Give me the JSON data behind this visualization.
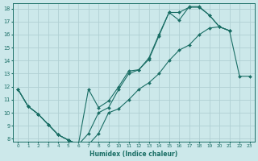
{
  "xlabel": "Humidex (Indice chaleur)",
  "xlim": [
    -0.5,
    23.5
  ],
  "ylim": [
    7.8,
    18.4
  ],
  "yticks": [
    8,
    9,
    10,
    11,
    12,
    13,
    14,
    15,
    16,
    17,
    18
  ],
  "xticks": [
    0,
    1,
    2,
    3,
    4,
    5,
    6,
    7,
    8,
    9,
    10,
    11,
    12,
    13,
    14,
    15,
    16,
    17,
    18,
    19,
    20,
    21,
    22,
    23
  ],
  "bg_color": "#cce8ea",
  "grid_color": "#b0d0d3",
  "line_color": "#1a6e65",
  "lines": [
    {
      "x": [
        0,
        1,
        2,
        3,
        4,
        5,
        6,
        7,
        8,
        9,
        10,
        11,
        12,
        13,
        14,
        15,
        16,
        17,
        18,
        19,
        20,
        21
      ],
      "y": [
        11.8,
        10.5,
        9.9,
        9.1,
        8.3,
        7.9,
        7.55,
        11.8,
        10.4,
        10.9,
        12.0,
        13.2,
        13.3,
        14.2,
        16.0,
        17.7,
        17.1,
        18.15,
        18.15,
        17.5,
        16.6,
        16.3
      ]
    },
    {
      "x": [
        0,
        1,
        2,
        3,
        4,
        5,
        6,
        7,
        8,
        9,
        10,
        11,
        12,
        13,
        14,
        15,
        16,
        17,
        18,
        19,
        20,
        21
      ],
      "y": [
        11.8,
        10.5,
        9.9,
        9.1,
        8.3,
        7.9,
        7.55,
        8.4,
        10.0,
        10.4,
        11.8,
        13.0,
        13.3,
        14.1,
        15.9,
        17.7,
        17.7,
        18.1,
        18.1,
        17.5,
        16.6,
        16.3
      ]
    },
    {
      "x": [
        0,
        1,
        2,
        3,
        4,
        5,
        6,
        7,
        8,
        9,
        10,
        11,
        12,
        13,
        14,
        15,
        16,
        17,
        18,
        19,
        20,
        21,
        22,
        23
      ],
      "y": [
        11.8,
        10.5,
        9.9,
        9.1,
        8.3,
        7.9,
        7.55,
        7.55,
        8.4,
        10.0,
        10.3,
        11.0,
        11.8,
        12.3,
        13.0,
        14.0,
        14.8,
        15.2,
        16.0,
        16.5,
        16.6,
        16.3,
        12.8,
        12.8
      ]
    }
  ]
}
